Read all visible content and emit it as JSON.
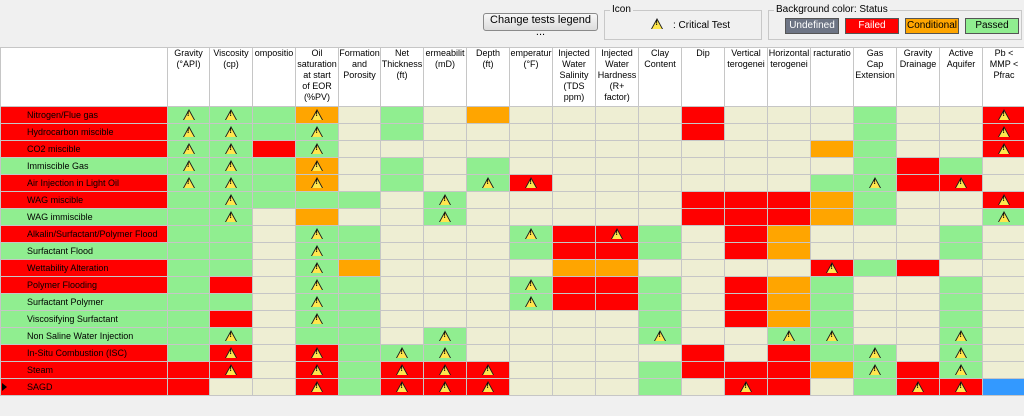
{
  "legend_button": "Change tests legend ...",
  "icon_legend": {
    "title": "Icon",
    "critical_label": ": Critical Test"
  },
  "status_legend": {
    "title": "Background color: Status",
    "items": [
      {
        "label": "Undefined",
        "color": "#6e7585",
        "text_color": "#ffffff"
      },
      {
        "label": "Failed",
        "color": "#ff0000",
        "text_color": "#ffffff"
      },
      {
        "label": "Conditional",
        "color": "#ffa500",
        "text_color": "#000000"
      },
      {
        "label": "Passed",
        "color": "#90ee90",
        "text_color": "#000000"
      }
    ]
  },
  "colors": {
    "R": "#ff0000",
    "G": "#90ee90",
    "O": "#ffa500",
    "E": "#eeeed3",
    "B": "#3399ff"
  },
  "columns": [
    "Gravity\n(°API)",
    "Viscosity\n(cp)",
    "ompositio",
    "Oil\nsaturation\nat start\nof EOR\n(%PV)",
    "Formation\nand\nPorosity",
    "Net\nThickness\n(ft)",
    "ermeabilit\n(mD)",
    "Depth\n(ft)",
    "emperatur\n(°F)",
    "Injected\nWater\nSalinity\n(TDS\nppm)",
    "Injected\nWater\nHardness\n(R+\nfactor)",
    "Clay\nContent",
    "Dip",
    "Vertical\nterogenei",
    "Horizontal\nterogenei",
    "racturatio",
    "Gas\nCap\nExtension",
    "Gravity\nDrainage",
    "Active\nAquifer",
    "Pb <\nMMP <\nPfrac"
  ],
  "rows": [
    {
      "name": "Nitrogen/Flue gas",
      "status": "R",
      "cells": [
        "G",
        "G",
        "G",
        "O",
        "E",
        "G",
        "E",
        "O",
        "E",
        "E",
        "E",
        "E",
        "R",
        "E",
        "E",
        "E",
        "G",
        "E",
        "E",
        "R"
      ],
      "icons": [
        0,
        1,
        3,
        19
      ]
    },
    {
      "name": "Hydrocarbon miscible",
      "status": "R",
      "cells": [
        "G",
        "G",
        "G",
        "G",
        "E",
        "G",
        "E",
        "E",
        "E",
        "E",
        "E",
        "E",
        "R",
        "E",
        "E",
        "E",
        "G",
        "E",
        "E",
        "R"
      ],
      "icons": [
        0,
        1,
        3,
        19
      ]
    },
    {
      "name": "CO2 miscible",
      "status": "R",
      "cells": [
        "G",
        "G",
        "R",
        "G",
        "E",
        "E",
        "E",
        "E",
        "E",
        "E",
        "E",
        "E",
        "E",
        "E",
        "E",
        "O",
        "G",
        "E",
        "E",
        "R"
      ],
      "icons": [
        0,
        1,
        3,
        19
      ]
    },
    {
      "name": "Immiscible Gas",
      "status": "G",
      "cells": [
        "G",
        "G",
        "G",
        "O",
        "E",
        "G",
        "E",
        "G",
        "E",
        "E",
        "E",
        "E",
        "E",
        "E",
        "E",
        "E",
        "G",
        "R",
        "G",
        "E"
      ],
      "icons": [
        0,
        1,
        3
      ]
    },
    {
      "name": "Air Injection in Light Oil",
      "status": "R",
      "cells": [
        "G",
        "G",
        "G",
        "O",
        "E",
        "G",
        "E",
        "G",
        "R",
        "E",
        "E",
        "E",
        "E",
        "E",
        "E",
        "G",
        "G",
        "R",
        "R",
        "E"
      ],
      "icons": [
        0,
        1,
        3,
        7,
        8,
        16,
        18
      ]
    },
    {
      "name": "WAG miscible",
      "status": "R",
      "cells": [
        "G",
        "G",
        "G",
        "G",
        "G",
        "E",
        "G",
        "E",
        "E",
        "E",
        "E",
        "E",
        "R",
        "R",
        "R",
        "O",
        "G",
        "E",
        "E",
        "R"
      ],
      "icons": [
        1,
        6,
        19
      ]
    },
    {
      "name": "WAG immiscible",
      "status": "G",
      "cells": [
        "G",
        "G",
        "E",
        "O",
        "E",
        "E",
        "G",
        "E",
        "E",
        "E",
        "E",
        "E",
        "R",
        "R",
        "R",
        "O",
        "G",
        "E",
        "E",
        "G"
      ],
      "icons": [
        1,
        6,
        19
      ]
    },
    {
      "name": "Alkalin/Surfactant/Polymer Flood",
      "status": "R",
      "cells": [
        "G",
        "G",
        "E",
        "G",
        "G",
        "E",
        "E",
        "E",
        "G",
        "R",
        "R",
        "G",
        "E",
        "R",
        "O",
        "E",
        "E",
        "E",
        "G",
        "E"
      ],
      "icons": [
        3,
        8,
        10
      ]
    },
    {
      "name": "Surfactant Flood",
      "status": "G",
      "cells": [
        "G",
        "G",
        "E",
        "G",
        "G",
        "E",
        "E",
        "E",
        "G",
        "R",
        "R",
        "G",
        "E",
        "R",
        "O",
        "E",
        "E",
        "E",
        "G",
        "E"
      ],
      "icons": [
        3
      ]
    },
    {
      "name": "Wettability Alteration",
      "status": "R",
      "cells": [
        "G",
        "G",
        "E",
        "G",
        "O",
        "E",
        "E",
        "E",
        "E",
        "O",
        "O",
        "E",
        "E",
        "E",
        "E",
        "R",
        "G",
        "R",
        "E",
        "E"
      ],
      "icons": [
        3,
        15
      ]
    },
    {
      "name": "Polymer Flooding",
      "status": "R",
      "cells": [
        "G",
        "R",
        "E",
        "G",
        "G",
        "E",
        "E",
        "E",
        "G",
        "R",
        "R",
        "G",
        "E",
        "R",
        "O",
        "G",
        "E",
        "E",
        "G",
        "E"
      ],
      "icons": [
        3,
        8
      ]
    },
    {
      "name": "Surfactant Polymer",
      "status": "G",
      "cells": [
        "G",
        "G",
        "E",
        "G",
        "G",
        "E",
        "E",
        "E",
        "G",
        "R",
        "R",
        "G",
        "E",
        "R",
        "O",
        "G",
        "E",
        "E",
        "G",
        "E"
      ],
      "icons": [
        3,
        8
      ]
    },
    {
      "name": "Viscosifying Surfactant",
      "status": "G",
      "cells": [
        "G",
        "R",
        "E",
        "G",
        "G",
        "E",
        "E",
        "E",
        "E",
        "E",
        "E",
        "G",
        "E",
        "R",
        "O",
        "G",
        "E",
        "E",
        "G",
        "E"
      ],
      "icons": [
        3
      ]
    },
    {
      "name": "Non Saline Water Injection",
      "status": "G",
      "cells": [
        "G",
        "G",
        "E",
        "G",
        "G",
        "E",
        "G",
        "E",
        "E",
        "E",
        "E",
        "G",
        "E",
        "E",
        "G",
        "G",
        "E",
        "E",
        "G",
        "E"
      ],
      "icons": [
        1,
        6,
        11,
        14,
        15,
        18
      ]
    },
    {
      "name": "In-Situ Combustion (ISC)",
      "status": "R",
      "cells": [
        "G",
        "R",
        "E",
        "R",
        "G",
        "G",
        "G",
        "E",
        "E",
        "E",
        "E",
        "E",
        "R",
        "E",
        "R",
        "G",
        "G",
        "E",
        "G",
        "E"
      ],
      "icons": [
        1,
        3,
        5,
        6,
        16,
        18
      ]
    },
    {
      "name": "Steam",
      "status": "R",
      "cells": [
        "R",
        "R",
        "E",
        "R",
        "G",
        "R",
        "R",
        "R",
        "E",
        "E",
        "E",
        "G",
        "R",
        "R",
        "R",
        "O",
        "G",
        "R",
        "G",
        "E"
      ],
      "icons": [
        1,
        3,
        5,
        6,
        7,
        16,
        18
      ]
    },
    {
      "name": "SAGD",
      "status": "R",
      "cells": [
        "R",
        "E",
        "E",
        "R",
        "G",
        "R",
        "R",
        "R",
        "E",
        "E",
        "E",
        "G",
        "E",
        "R",
        "R",
        "E",
        "G",
        "R",
        "R",
        "B"
      ],
      "icons": [
        3,
        5,
        6,
        7,
        13,
        17,
        18
      ],
      "selected": true
    }
  ]
}
